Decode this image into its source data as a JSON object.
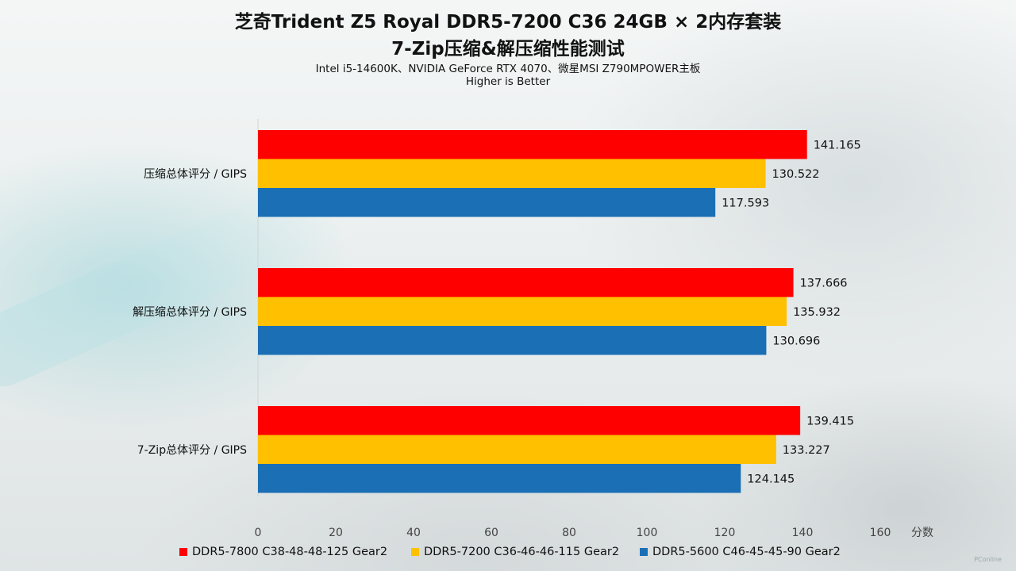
{
  "header": {
    "title": "芝奇Trident Z5 Royal DDR5-7200 C36 24GB × 2内存套装",
    "subtitle": "7-Zip压缩&解压缩性能测试",
    "platform": "Intel i5-14600K、NVIDIA GeForce RTX 4070、微星MSI Z790MPOWER主板",
    "note": "Higher is Better"
  },
  "chart_data": {
    "type": "bar",
    "orientation": "horizontal",
    "categories": [
      "压缩总体评分 / GIPS",
      "解压缩总体评分 / GIPS",
      "7-Zip总体评分 / GIPS"
    ],
    "series": [
      {
        "name": "DDR5-7800 C38-48-48-125 Gear2",
        "color": "#ff0000",
        "values": [
          141.165,
          137.666,
          139.415
        ],
        "labels": [
          "141.165",
          "137.666",
          "139.415"
        ]
      },
      {
        "name": "DDR5-7200 C36-46-46-115 Gear2",
        "color": "#ffc000",
        "values": [
          130.522,
          135.932,
          133.227
        ],
        "labels": [
          "130.522",
          "135.932",
          "133.227"
        ]
      },
      {
        "name": "DDR5-5600 C46-45-45-90 Gear2",
        "color": "#1a6fb5",
        "values": [
          117.593,
          130.696,
          124.145
        ],
        "labels": [
          "117.593",
          "130.696",
          "124.145"
        ]
      }
    ],
    "xlim": [
      0,
      160
    ],
    "xticks": [
      "0",
      "20",
      "40",
      "60",
      "80",
      "100",
      "120",
      "140",
      "160"
    ],
    "xlabel": "分数",
    "legend_position": "bottom",
    "grid": false
  },
  "watermark": "PConline"
}
